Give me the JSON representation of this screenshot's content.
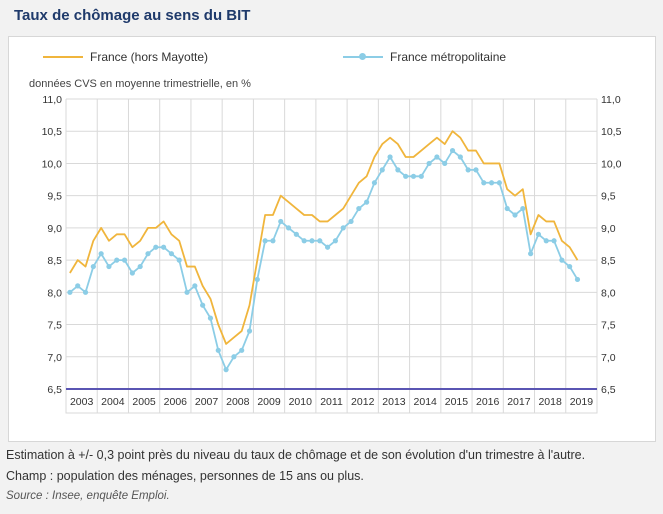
{
  "title": "Taux de chômage au sens du BIT",
  "legend": {
    "series1": "France (hors Mayotte)",
    "series2": "France métropolitaine"
  },
  "note": "données CVS en moyenne trimestrielle, en %",
  "footer": {
    "line1": "Estimation à +/- 0,3 point près du niveau du taux de chômage et de son évolution d'un trimestre à l'autre.",
    "line2": "Champ : population des ménages, personnes de 15 ans ou plus.",
    "source": "Source : Insee, enquête Emploi."
  },
  "colors": {
    "series1": "#f0b53c",
    "series2": "#8ccde6",
    "axis": "#5a55b3",
    "grid": "#d9d9d9"
  },
  "chart_data": {
    "type": "line",
    "ylim": [
      6.5,
      11.0
    ],
    "yticks": [
      "6,5",
      "7,0",
      "7,5",
      "8,0",
      "8,5",
      "9,0",
      "9,5",
      "10,0",
      "10,5",
      "11,0"
    ],
    "years": [
      "2003",
      "2004",
      "2005",
      "2006",
      "2007",
      "2008",
      "2009",
      "2010",
      "2011",
      "2012",
      "2013",
      "2014",
      "2015",
      "2016",
      "2017",
      "2018",
      "2019"
    ],
    "x_start": "2003-T1",
    "series": [
      {
        "name": "France (hors Mayotte)",
        "values": [
          8.3,
          8.5,
          8.4,
          8.8,
          9.0,
          8.8,
          8.9,
          8.9,
          8.7,
          8.8,
          9.0,
          9.0,
          9.1,
          8.9,
          8.8,
          8.4,
          8.4,
          8.1,
          7.9,
          7.5,
          7.2,
          7.3,
          7.4,
          7.8,
          8.5,
          9.2,
          9.2,
          9.5,
          9.4,
          9.3,
          9.2,
          9.2,
          9.1,
          9.1,
          9.2,
          9.3,
          9.5,
          9.7,
          9.8,
          10.1,
          10.3,
          10.4,
          10.3,
          10.1,
          10.1,
          10.2,
          10.3,
          10.4,
          10.3,
          10.5,
          10.4,
          10.2,
          10.2,
          10.0,
          10.0,
          10.0,
          9.6,
          9.5,
          9.6,
          8.9,
          9.2,
          9.1,
          9.1,
          8.8,
          8.7,
          8.5
        ]
      },
      {
        "name": "France métropolitaine",
        "values": [
          8.0,
          8.1,
          8.0,
          8.4,
          8.6,
          8.4,
          8.5,
          8.5,
          8.3,
          8.4,
          8.6,
          8.7,
          8.7,
          8.6,
          8.5,
          8.0,
          8.1,
          7.8,
          7.6,
          7.1,
          6.8,
          7.0,
          7.1,
          7.4,
          8.2,
          8.8,
          8.8,
          9.1,
          9.0,
          8.9,
          8.8,
          8.8,
          8.8,
          8.7,
          8.8,
          9.0,
          9.1,
          9.3,
          9.4,
          9.7,
          9.9,
          10.1,
          9.9,
          9.8,
          9.8,
          9.8,
          10.0,
          10.1,
          10.0,
          10.2,
          10.1,
          9.9,
          9.9,
          9.7,
          9.7,
          9.7,
          9.3,
          9.2,
          9.3,
          8.6,
          8.9,
          8.8,
          8.8,
          8.5,
          8.4,
          8.2
        ]
      }
    ]
  }
}
